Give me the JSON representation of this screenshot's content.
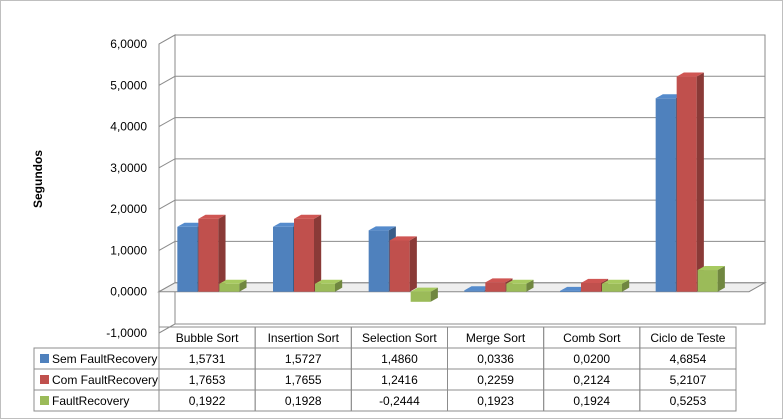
{
  "chart_data": {
    "type": "bar",
    "ylabel": "Segundos",
    "xlabel": "",
    "ylim": [
      -1,
      6
    ],
    "ytick_step": 1,
    "ytick_labels": [
      "-1,0000",
      "0,0000",
      "1,0000",
      "2,0000",
      "3,0000",
      "4,0000",
      "5,0000",
      "6,0000"
    ],
    "categories": [
      "Bubble Sort",
      "Insertion Sort",
      "Selection Sort",
      "Merge Sort",
      "Comb Sort",
      "Ciclo de Teste"
    ],
    "series": [
      {
        "name": "Sem FaultRecovery",
        "values": [
          1.5731,
          1.5727,
          1.486,
          0.0336,
          0.02,
          4.6854
        ],
        "labels": [
          "1,5731",
          "1,5727",
          "1,4860",
          "0,0336",
          "0,0200",
          "4,6854"
        ],
        "color": "#4f81bd"
      },
      {
        "name": "Com FaultRecovery",
        "values": [
          1.7653,
          1.7655,
          1.2416,
          0.2259,
          0.2124,
          5.2107
        ],
        "labels": [
          "1,7653",
          "1,7655",
          "1,2416",
          "0,2259",
          "0,2124",
          "5,2107"
        ],
        "color": "#c0504d"
      },
      {
        "name": "FaultRecovery",
        "values": [
          0.1922,
          0.1928,
          -0.2444,
          0.1923,
          0.1924,
          0.5253
        ],
        "labels": [
          "0,1922",
          "0,1928",
          "-0,2444",
          "0,1923",
          "0,1924",
          "0,5253"
        ],
        "color": "#9bbb59"
      }
    ],
    "grid": true,
    "legend": "data-table"
  }
}
